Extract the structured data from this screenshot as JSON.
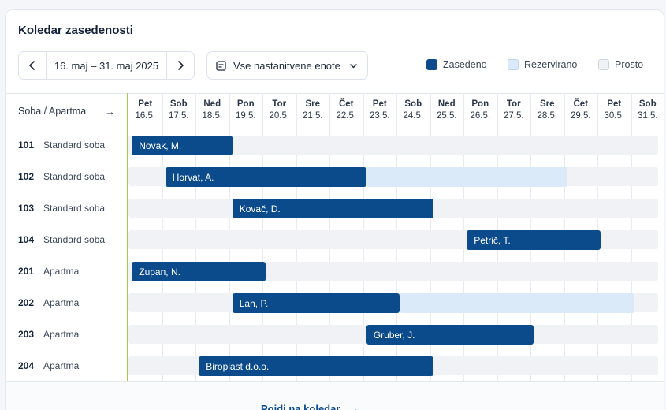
{
  "header": {
    "title": "Koledar zasedenosti"
  },
  "range": {
    "label": "16. maj – 31. maj 2025"
  },
  "units_filter": {
    "label": "Vse nastanitvene enote"
  },
  "legend": [
    {
      "label": "Zasedeno",
      "color": "#0b4a8b"
    },
    {
      "label": "Rezervirano",
      "color": "#dbeaf9"
    },
    {
      "label": "Prosto",
      "color": "#f0f2f5"
    }
  ],
  "grid": {
    "column_header": "Soba / Apartma",
    "column_header_arrow": "→"
  },
  "days": [
    {
      "name": "Pet",
      "date": "16.5."
    },
    {
      "name": "Sob",
      "date": "17.5."
    },
    {
      "name": "Ned",
      "date": "18.5."
    },
    {
      "name": "Pon",
      "date": "19.5."
    },
    {
      "name": "Tor",
      "date": "20.5."
    },
    {
      "name": "Sre",
      "date": "21.5."
    },
    {
      "name": "Čet",
      "date": "22.5."
    },
    {
      "name": "Pet",
      "date": "23.5."
    },
    {
      "name": "Sob",
      "date": "24.5."
    },
    {
      "name": "Ned",
      "date": "25.5."
    },
    {
      "name": "Pon",
      "date": "26.5."
    },
    {
      "name": "Tor",
      "date": "27.5."
    },
    {
      "name": "Sre",
      "date": "28.5."
    },
    {
      "name": "Čet",
      "date": "29.5."
    },
    {
      "name": "Pet",
      "date": "30.5."
    },
    {
      "name": "Sob",
      "date": "31.5."
    }
  ],
  "rooms": [
    {
      "number": "101",
      "type": "Standard soba",
      "bookings": [
        {
          "guest": "Novak, M.",
          "status": "occupied",
          "start": "16.5.",
          "end": "19.5."
        }
      ]
    },
    {
      "number": "102",
      "type": "Standard soba",
      "bookings": [
        {
          "guest": "Horvat, A.",
          "status": "occupied",
          "start": "17.5.",
          "end": "23.5."
        },
        {
          "guest": "",
          "status": "reserved",
          "start": "23.5.",
          "end": "29.5."
        }
      ]
    },
    {
      "number": "103",
      "type": "Standard soba",
      "bookings": [
        {
          "guest": "Kovač, D.",
          "status": "occupied",
          "start": "19.5.",
          "end": "25.5."
        }
      ]
    },
    {
      "number": "104",
      "type": "Standard soba",
      "bookings": [
        {
          "guest": "Petrič, T.",
          "status": "occupied",
          "start": "26.5.",
          "end": "30.5."
        }
      ]
    },
    {
      "number": "201",
      "type": "Apartma",
      "bookings": [
        {
          "guest": "Zupan, N.",
          "status": "occupied",
          "start": "16.5.",
          "end": "20.5."
        }
      ]
    },
    {
      "number": "202",
      "type": "Apartma",
      "bookings": [
        {
          "guest": "Lah, P.",
          "status": "occupied",
          "start": "19.5.",
          "end": "24.5."
        },
        {
          "guest": "",
          "status": "reserved",
          "start": "24.5.",
          "end": "31.5."
        }
      ]
    },
    {
      "number": "203",
      "type": "Apartma",
      "bookings": [
        {
          "guest": "Gruber, J.",
          "status": "occupied",
          "start": "23.5.",
          "end": "28.5."
        }
      ]
    },
    {
      "number": "204",
      "type": "Apartma",
      "bookings": [
        {
          "guest": "Biroplast d.o.o.",
          "status": "occupied",
          "start": "18.5.",
          "end": "25.5."
        }
      ]
    }
  ],
  "footer": {
    "link_label": "Pojdi na koledar",
    "link_arrow": "→"
  }
}
